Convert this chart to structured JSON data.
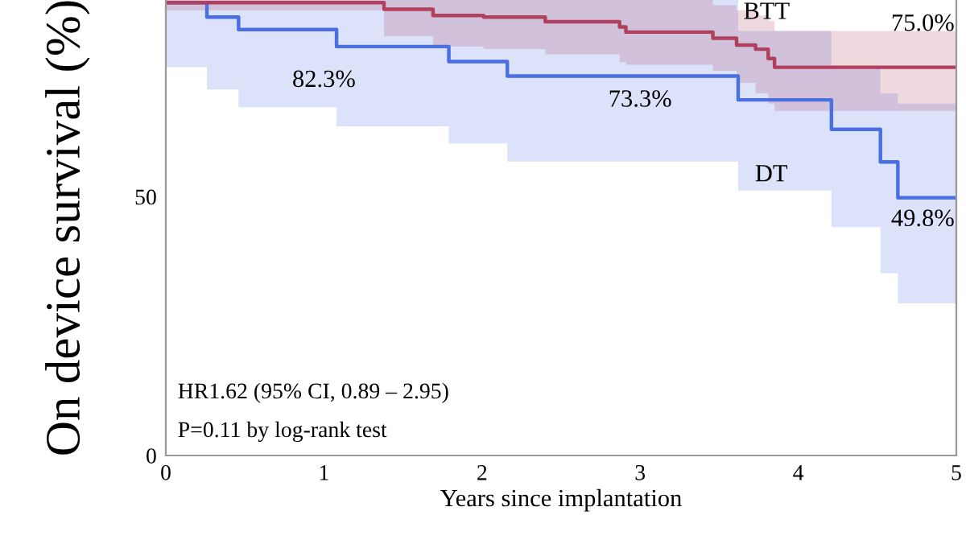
{
  "chart_data": {
    "type": "step",
    "xlabel": "Years since implantation",
    "ylabel": "On device survival (%)",
    "xlim": [
      0,
      5
    ],
    "xticks": [
      0,
      1,
      2,
      3,
      4,
      5
    ],
    "ylim": [
      0,
      88
    ],
    "yticks": [
      0,
      50
    ],
    "grid": false,
    "series": [
      {
        "color": "#4a6fe0",
        "x": [
          0,
          0.26,
          0.46,
          1.08,
          1.79,
          2.16,
          3.62,
          4.21,
          4.52,
          4.63,
          5
        ],
        "values": [
          87.5,
          84.7,
          82.3,
          79.0,
          76.1,
          73.3,
          68.7,
          63.0,
          56.7,
          49.8,
          49.8
        ],
        "lower": [
          75,
          70.7,
          67.3,
          63.6,
          60.3,
          56.8,
          51.2,
          44.1,
          35.2,
          29.4,
          29.4
        ],
        "upper": [
          88,
          88,
          88,
          88,
          88,
          88,
          82,
          75,
          70,
          68,
          68
        ]
      },
      {
        "color": "#b0405e",
        "x": [
          0,
          1.38,
          1.69,
          2.01,
          2.4,
          2.87,
          2.91,
          3.46,
          3.61,
          3.73,
          3.81,
          3.85,
          5
        ],
        "values": [
          87.5,
          86.2,
          85.0,
          84.7,
          83.8,
          82.8,
          81.8,
          80.6,
          79.3,
          78.5,
          76.7,
          75.0,
          75.0
        ],
        "lower": [
          86,
          81,
          79,
          78.5,
          77.5,
          76,
          75.5,
          74.3,
          72,
          70,
          68,
          66.6,
          66.6
        ],
        "upper": [
          88,
          88,
          88,
          88,
          88,
          88,
          88,
          87,
          86,
          85,
          84,
          82,
          82
        ]
      }
    ],
    "annotations": [
      {
        "text": "82.3%",
        "x": 1.0,
        "y": 82.3
      },
      {
        "text": "73.3%",
        "x": 3.0,
        "y": 73.3
      },
      {
        "text": "49.8%",
        "x": 5,
        "y": 49.8
      },
      {
        "text": "75.0%",
        "x": 5,
        "y": 75.0
      },
      {
        "text": "BTT",
        "x": 3.8,
        "y": 85.5
      },
      "DT",
      "HR1.62 (95% CI, 0.89 – 2.95)",
      "P=0.11 by log-rank test"
    ]
  }
}
